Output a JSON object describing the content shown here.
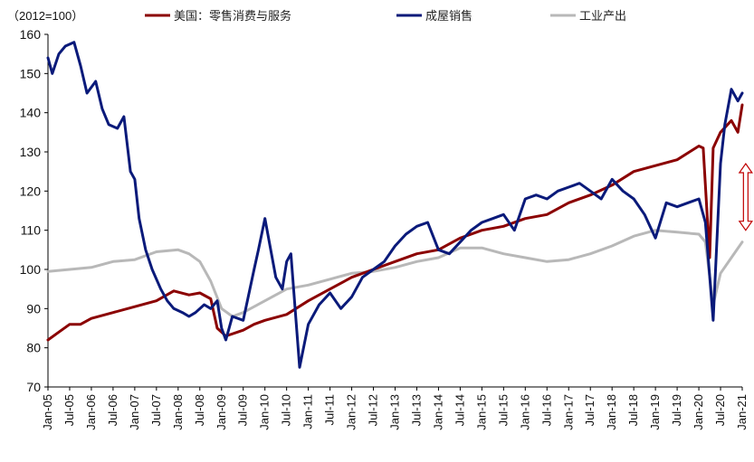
{
  "chart_data": {
    "type": "line",
    "unit_label": "（2012=100）",
    "ylim": [
      70,
      160
    ],
    "y_ticks": [
      70,
      80,
      90,
      100,
      110,
      120,
      130,
      140,
      150,
      160
    ],
    "x_tick_labels": [
      "Jan-05",
      "Jul-05",
      "Jan-06",
      "Jul-06",
      "Jan-07",
      "Jul-07",
      "Jan-08",
      "Jul-08",
      "Jan-09",
      "Jul-09",
      "Jan-10",
      "Jul-10",
      "Jan-11",
      "Jul-11",
      "Jan-12",
      "Jul-12",
      "Jan-13",
      "Jul-13",
      "Jan-14",
      "Jul-14",
      "Jan-15",
      "Jul-15",
      "Jan-16",
      "Jul-16",
      "Jan-17",
      "Jul-17",
      "Jan-18",
      "Jul-18",
      "Jan-19",
      "Jul-19",
      "Jan-20",
      "Jul-20",
      "Jan-21"
    ],
    "grid": false,
    "legend_position": "top",
    "series": [
      {
        "name": "美国：零售消费与服务",
        "color": "#8b0000",
        "x": [
          2005.0,
          2005.25,
          2005.5,
          2005.75,
          2006.0,
          2006.5,
          2007.0,
          2007.5,
          2007.9,
          2008.25,
          2008.5,
          2008.75,
          2008.9,
          2009.1,
          2009.5,
          2009.75,
          2010.0,
          2010.5,
          2011.0,
          2011.5,
          2012.0,
          2012.5,
          2013.0,
          2013.5,
          2014.0,
          2014.5,
          2015.0,
          2015.5,
          2016.0,
          2016.5,
          2017.0,
          2017.5,
          2018.0,
          2018.5,
          2019.0,
          2019.5,
          2020.0,
          2020.1,
          2020.25,
          2020.33,
          2020.5,
          2020.75,
          2020.9,
          2021.0
        ],
        "values": [
          82,
          84,
          86,
          86,
          87.5,
          89,
          90.5,
          92,
          94.5,
          93.5,
          94,
          92.5,
          85,
          83,
          84.5,
          86,
          87,
          88.5,
          92,
          95,
          98,
          100,
          102,
          104,
          105,
          108,
          110,
          111,
          113,
          114,
          117,
          119,
          121.5,
          125,
          126.5,
          128,
          131.5,
          131,
          103,
          131,
          135,
          138,
          135,
          142
        ]
      },
      {
        "name": "成屋销售",
        "color": "#0a1a7a",
        "x": [
          2005.0,
          2005.1,
          2005.25,
          2005.4,
          2005.6,
          2005.75,
          2005.9,
          2006.1,
          2006.25,
          2006.4,
          2006.6,
          2006.75,
          2006.9,
          2007.0,
          2007.1,
          2007.25,
          2007.4,
          2007.6,
          2007.75,
          2007.9,
          2008.1,
          2008.25,
          2008.4,
          2008.6,
          2008.75,
          2008.9,
          2009.0,
          2009.1,
          2009.25,
          2009.5,
          2009.75,
          2009.85,
          2010.0,
          2010.25,
          2010.4,
          2010.5,
          2010.6,
          2010.8,
          2011.0,
          2011.25,
          2011.5,
          2011.75,
          2012.0,
          2012.25,
          2012.5,
          2012.75,
          2013.0,
          2013.25,
          2013.5,
          2013.75,
          2014.0,
          2014.25,
          2014.5,
          2014.75,
          2015.0,
          2015.25,
          2015.5,
          2015.75,
          2016.0,
          2016.25,
          2016.5,
          2016.75,
          2017.0,
          2017.25,
          2017.5,
          2017.75,
          2018.0,
          2018.25,
          2018.5,
          2018.75,
          2019.0,
          2019.25,
          2019.5,
          2019.75,
          2020.0,
          2020.15,
          2020.33,
          2020.5,
          2020.6,
          2020.75,
          2020.9,
          2021.0
        ],
        "values": [
          154,
          150,
          155,
          157,
          158,
          152,
          145,
          148,
          141,
          137,
          136,
          139,
          125,
          123,
          113,
          105,
          100,
          95,
          92,
          90,
          89,
          88,
          89,
          91,
          90,
          92,
          85,
          82,
          88,
          87,
          100,
          105,
          113,
          98,
          95,
          102,
          104,
          75,
          86,
          91,
          94,
          90,
          93,
          98,
          100,
          102,
          106,
          109,
          111,
          112,
          105,
          104,
          107,
          110,
          112,
          113,
          114,
          110,
          118,
          119,
          118,
          120,
          121,
          122,
          120,
          118,
          123,
          120,
          118,
          114,
          108,
          117,
          116,
          117,
          118,
          112,
          87,
          127,
          137,
          146,
          143,
          145
        ]
      },
      {
        "name": "工业产出",
        "color": "#b8b8b8",
        "x": [
          2005.0,
          2005.5,
          2006.0,
          2006.5,
          2007.0,
          2007.5,
          2008.0,
          2008.25,
          2008.5,
          2008.75,
          2009.0,
          2009.25,
          2009.5,
          2010.0,
          2010.5,
          2011.0,
          2011.5,
          2012.0,
          2012.5,
          2013.0,
          2013.5,
          2014.0,
          2014.5,
          2015.0,
          2015.5,
          2016.0,
          2016.5,
          2017.0,
          2017.5,
          2018.0,
          2018.5,
          2019.0,
          2019.5,
          2020.0,
          2020.15,
          2020.33,
          2020.5,
          2020.75,
          2021.0
        ],
        "values": [
          99.5,
          100,
          100.5,
          102,
          102.5,
          104.5,
          105,
          104,
          102,
          97,
          90,
          88,
          89,
          92,
          95,
          96,
          97.5,
          99,
          99.5,
          100.5,
          102,
          103,
          105.5,
          105.5,
          104,
          103,
          102,
          102.5,
          104,
          106,
          108.5,
          110,
          109.5,
          109,
          107,
          91,
          99,
          103,
          107
        ]
      }
    ],
    "annotations": [
      {
        "type": "double-arrow",
        "color": "#c00000",
        "x": 2021.08,
        "y_from": 110,
        "y_to": 127
      }
    ]
  }
}
